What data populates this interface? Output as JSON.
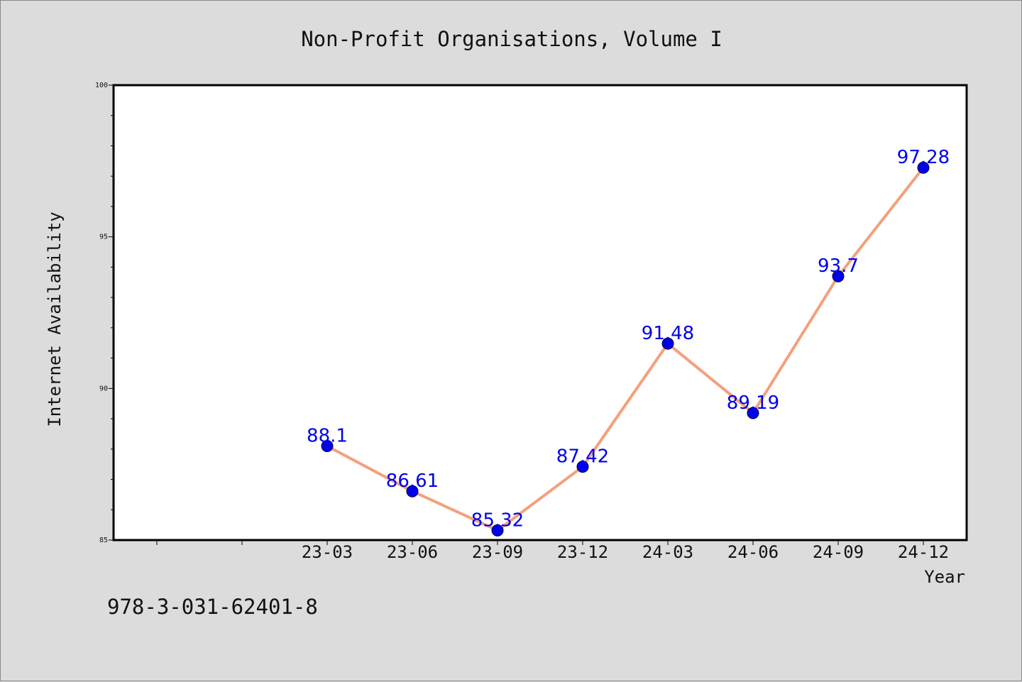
{
  "chart_data": {
    "type": "line",
    "title": "Non-Profit Organisations, Volume I",
    "xlabel": "Year",
    "ylabel": "Internet Availability",
    "categories": [
      "23-03",
      "23-06",
      "23-09",
      "23-12",
      "24-03",
      "24-06",
      "24-09",
      "24-12"
    ],
    "series": [
      {
        "values": [
          88.1,
          86.61,
          85.32,
          87.42,
          91.48,
          89.19,
          93.7,
          97.28
        ]
      }
    ],
    "data_labels": [
      "88.1",
      "86.61",
      "85.32",
      "87.42",
      "91.48",
      "89.19",
      "93.7",
      "97.28"
    ],
    "ylim": [
      85,
      100
    ],
    "yticks": [
      "85",
      "90",
      "95",
      "100"
    ],
    "grid": false,
    "line_color": "#f4a07c",
    "marker_color": "#0000ee",
    "label_color": "#0000ee"
  },
  "footer": {
    "isbn": "978-3-031-62401-8"
  }
}
